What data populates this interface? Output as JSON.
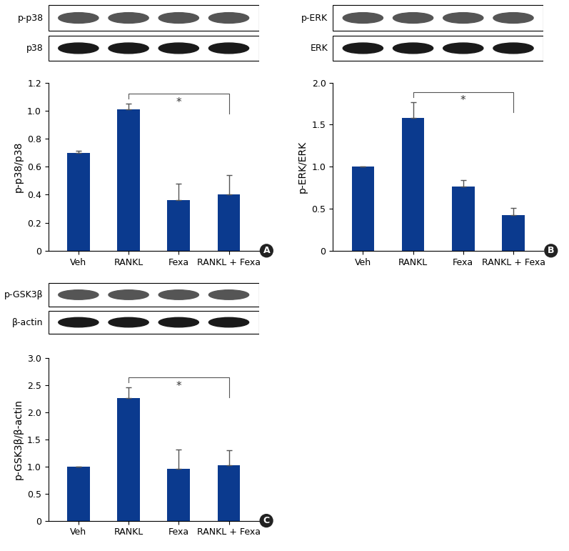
{
  "chart_data": [
    {
      "type": "bar",
      "panel_label": "A",
      "y_label": "p-p38/p38",
      "categories": [
        "Veh",
        "RANKL",
        "Fexa",
        "RANKL + Fexa"
      ],
      "values": [
        0.7,
        1.01,
        0.36,
        0.4
      ],
      "errors": [
        0.015,
        0.04,
        0.12,
        0.14
      ],
      "color": "#0b3a8e",
      "ylim": [
        0,
        1.2
      ],
      "yticks": [
        0,
        0.2,
        0.4,
        0.6,
        0.8,
        1.0,
        1.2
      ],
      "significance": {
        "from": "RANKL",
        "to": "RANKL + Fexa",
        "label": "*"
      },
      "blots": [
        "p-p38",
        "p38"
      ]
    },
    {
      "type": "bar",
      "panel_label": "B",
      "y_label": "p-ERK/ERK",
      "categories": [
        "Veh",
        "RANKL",
        "Fexa",
        "RANKL + Fexa"
      ],
      "values": [
        1.0,
        1.58,
        0.76,
        0.42
      ],
      "errors": [
        0,
        0.19,
        0.08,
        0.09
      ],
      "color": "#0b3a8e",
      "ylim": [
        0,
        2.0
      ],
      "yticks": [
        0,
        0.5,
        1.0,
        1.5,
        2.0
      ],
      "significance": {
        "from": "RANKL",
        "to": "RANKL + Fexa",
        "label": "*"
      },
      "blots": [
        "p-ERK",
        "ERK"
      ]
    },
    {
      "type": "bar",
      "panel_label": "C",
      "y_label": "p-GSK3β/β-actin",
      "categories": [
        "Veh",
        "RANKL",
        "Fexa",
        "RANKL + Fexa"
      ],
      "values": [
        1.0,
        2.26,
        0.96,
        1.03
      ],
      "errors": [
        0,
        0.2,
        0.36,
        0.27
      ],
      "color": "#0b3a8e",
      "ylim": [
        0,
        3.0
      ],
      "yticks": [
        0,
        0.5,
        1.0,
        1.5,
        2.0,
        2.5,
        3.0
      ],
      "significance": {
        "from": "RANKL",
        "to": "RANKL + Fexa",
        "label": "*"
      },
      "blots": [
        "p-GSK3β",
        "β-actin"
      ]
    }
  ]
}
